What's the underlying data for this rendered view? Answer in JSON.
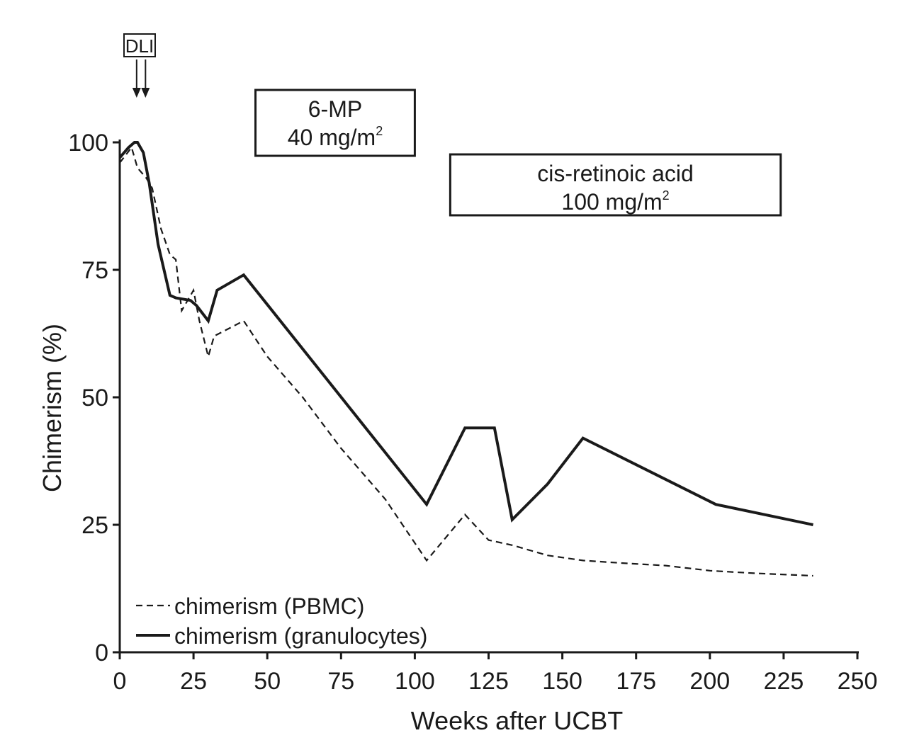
{
  "chart_data": {
    "type": "line",
    "title": "",
    "xlabel": "Weeks after UCBT",
    "ylabel": "Chimerism (%)",
    "xlim": [
      0,
      250
    ],
    "ylim": [
      0,
      100
    ],
    "x_ticks": [
      0,
      25,
      50,
      75,
      100,
      125,
      150,
      175,
      200,
      225,
      250
    ],
    "y_ticks": [
      0,
      25,
      50,
      75,
      100
    ],
    "grid": false,
    "legend_position": "bottom-left",
    "series": [
      {
        "name": "chimerism (PBMC)",
        "style": "dashed",
        "x": [
          0,
          4,
          6,
          9,
          11,
          14,
          17,
          19,
          21,
          25,
          27,
          30,
          32,
          42,
          50,
          62,
          75,
          90,
          104,
          117,
          125,
          133,
          145,
          157,
          170,
          185,
          200,
          215,
          235
        ],
        "y": [
          96,
          99,
          95,
          93,
          91,
          83,
          78,
          77,
          67,
          71,
          65,
          58,
          62,
          65,
          58,
          50,
          40,
          30,
          18,
          27,
          22,
          21,
          19,
          18,
          17.5,
          17,
          16,
          15.5,
          15
        ]
      },
      {
        "name": "chimerism (granulocytes)",
        "style": "solid",
        "x": [
          0,
          3,
          5,
          6,
          8,
          10,
          13,
          17,
          19,
          24,
          26,
          30,
          33,
          42,
          104,
          117,
          127,
          133,
          145,
          157,
          202,
          235
        ],
        "y": [
          97,
          99,
          100,
          100,
          98,
          92,
          80,
          70,
          69.5,
          69,
          68,
          65,
          71,
          74,
          29,
          44,
          44,
          26,
          33,
          42,
          29,
          25
        ]
      }
    ],
    "annotations": [
      {
        "id": "dli",
        "text": "DLI",
        "arrows_at_x": [
          5,
          8
        ]
      },
      {
        "id": "mp",
        "line1": "6-MP",
        "line2": "40 mg/m",
        "sup": "2",
        "x_range": [
          46,
          100
        ]
      },
      {
        "id": "retinoic",
        "line1": "cis-retinoic acid",
        "line2": "100 mg/m",
        "sup": "2",
        "x_range": [
          112,
          224
        ]
      }
    ],
    "colors": {
      "line": "#1a1a1a",
      "background": "#ffffff"
    }
  }
}
